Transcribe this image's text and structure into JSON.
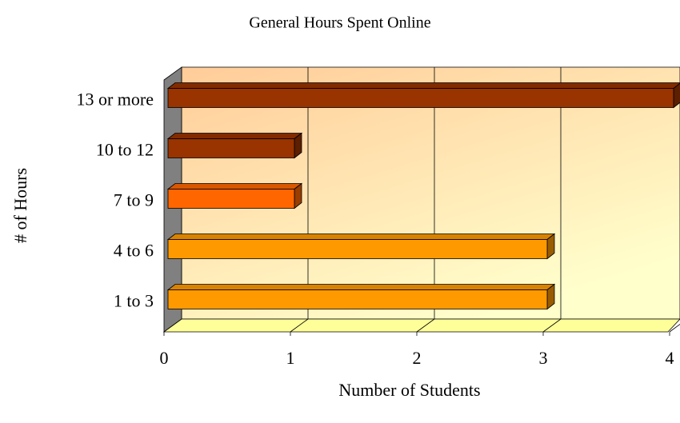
{
  "chart_data": {
    "type": "bar",
    "orientation": "horizontal",
    "title": "General Hours Spent Online",
    "x_label": "Number of Students",
    "y_label": "# of Hours",
    "categories": [
      "1 to 3",
      "4 to 6",
      "7 to 9",
      "10 to 12",
      "13 or more"
    ],
    "values": [
      3,
      3,
      1,
      1,
      4
    ],
    "colors": [
      "#ff9900",
      "#ff9900",
      "#ff6600",
      "#993300",
      "#993300"
    ],
    "xlim": [
      0,
      4
    ],
    "xticks": [
      0,
      1,
      2,
      3,
      4
    ],
    "grid": true
  }
}
